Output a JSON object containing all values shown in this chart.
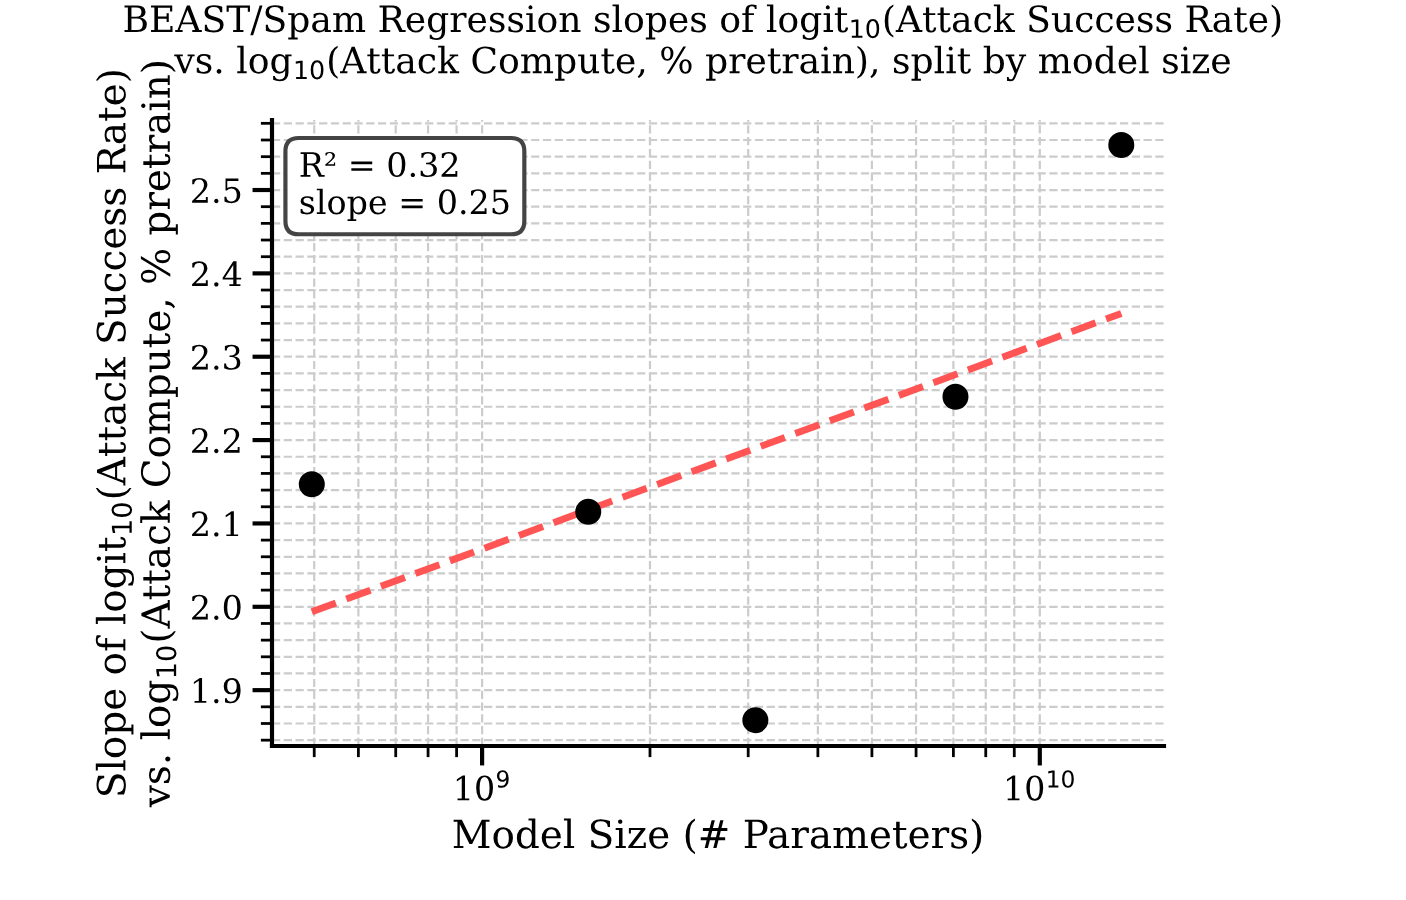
{
  "chart_data": {
    "type": "scatter",
    "title": "BEAST/Spam Regression slopes of logit$_{10}$(Attack Success Rate)\nvs. log$_{10}$(Attack Compute, % pretrain), split by model size",
    "xlabel": "Model Size (# Parameters)",
    "ylabel": "Slope of logit$_{10}$(Attack Success Rate)\nvs. log$_{10}$(Attack Compute, % pretrain)",
    "log": "x",
    "grid": true,
    "marker": "circle",
    "series": [
      {
        "color": "#000000",
        "x": [
          495000000.0,
          1550000000.0,
          3090000000.0,
          7060000000.0,
          14000000000.0
        ],
        "values": [
          2.147,
          2.114,
          1.864,
          2.252,
          2.554
        ]
      },
      {
        "type": "line",
        "color": "#ff5555",
        "line_style": "dashed",
        "marker": "none",
        "x": [
          495000000.0,
          14000000000.0
        ],
        "values": [
          1.994,
          2.352
        ]
      }
    ],
    "annotations": [
      "R² = 0.32\nslope = 0.25"
    ],
    "xlim": [
      420000000.0,
      16700000000.0
    ],
    "xticks": [
      {
        "value": 1000000000.0,
        "label": "10$^{9}$"
      },
      {
        "value": 10000000000.0,
        "label": "10$^{10}$"
      }
    ],
    "ylim": [
      1.833,
      2.584
    ],
    "yticks": [
      1.9,
      {
        "value": 2.0,
        "label": "2.0"
      },
      2.1,
      2.2,
      2.3,
      2.4,
      2.5
    ]
  }
}
